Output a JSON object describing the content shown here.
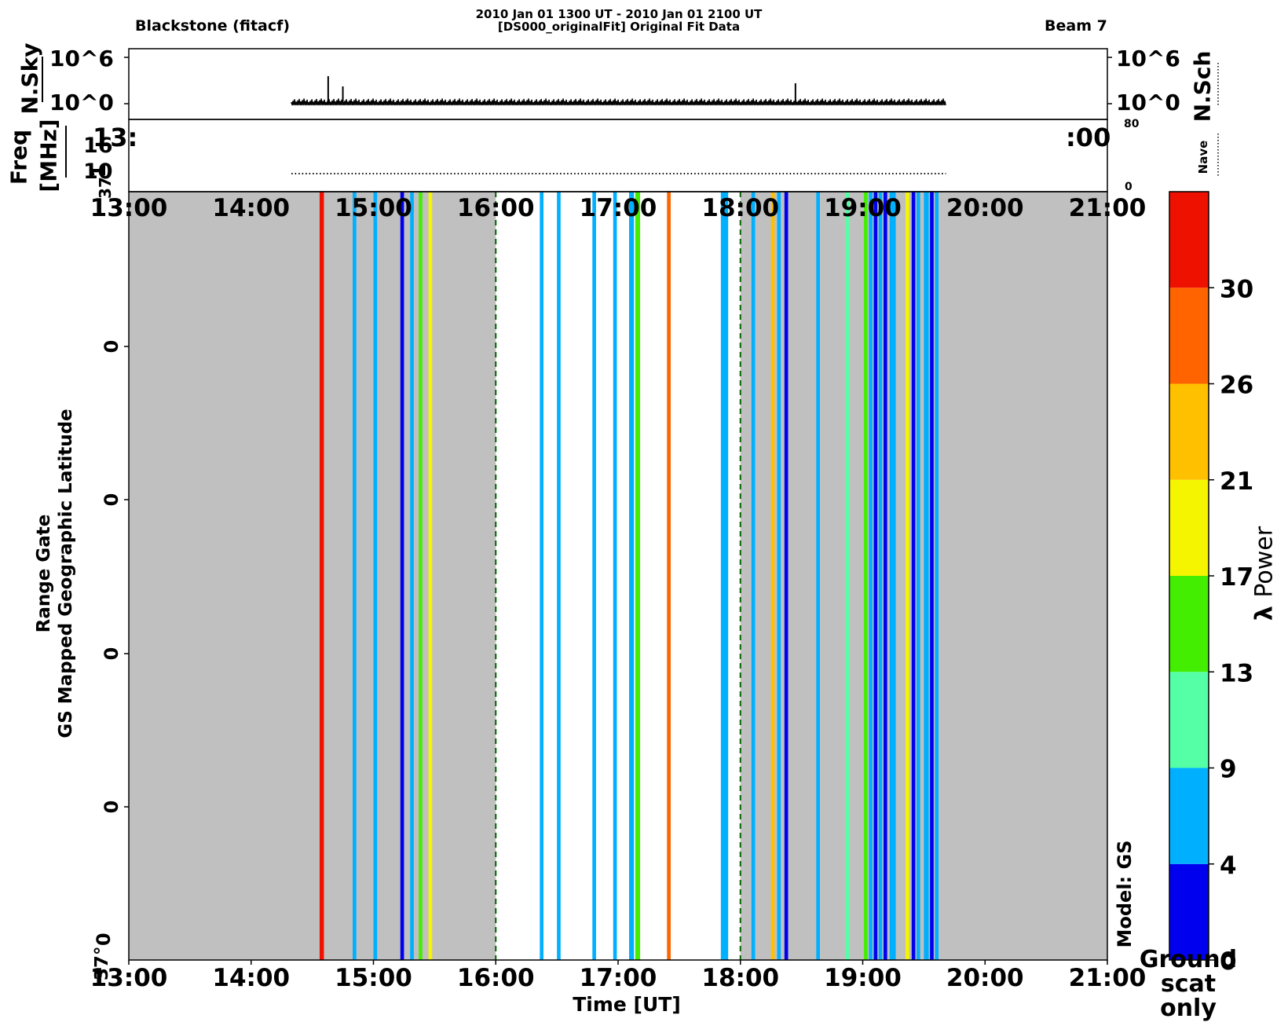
{
  "header": {
    "left": "Blackstone  (fitacf)",
    "center_line1": "2010 Jan 01 1300 UT - 2010 Jan 01 2100 UT",
    "center_line2": "[DS000_originalFit] Original Fit Data",
    "right": "Beam 7"
  },
  "top_panel": {
    "left_label": "N.Sky",
    "right_label": "N.Sch",
    "left_ticks": [
      "10^6",
      "10^0"
    ],
    "right_ticks": [
      "10^6",
      "10^0"
    ],
    "spike_times": [
      14.63,
      14.75,
      18.45
    ]
  },
  "mid_panel": {
    "left_label_1": "Freq",
    "left_label_2": "[MHz]",
    "left_ticks": [
      "16",
      "10"
    ],
    "right_label": "Nave",
    "right_ticks": [
      "80",
      "0"
    ],
    "overlap_left": "13:",
    "overlap_right": ":00",
    "overlap_low_1": "1",
    "overlap_low_2": "37°"
  },
  "main_panel": {
    "ylabel_1": "Range Gate",
    "ylabel_2": "GS Mapped Geographic Latitude",
    "xlabel": "Time [UT]",
    "model_label": "Model: GS",
    "y_ticks": [
      "0",
      "0",
      "0",
      "0"
    ],
    "y_bottom_1": "0",
    "y_bottom_2": "37°",
    "x_ticks": [
      "13:00",
      "14:00",
      "15:00",
      "16:00",
      "17:00",
      "18:00",
      "19:00",
      "20:00",
      "21:00"
    ],
    "gray": "#c0c0c0",
    "dashed_line_color": "#006400"
  },
  "colorbar": {
    "label_symbol": "λ",
    "label_word": "Power",
    "ticks": [
      "30",
      "26",
      "21",
      "17",
      "13",
      "9",
      "4",
      "0"
    ],
    "ground_label_1": "Ground",
    "ground_label_2": "scat",
    "ground_label_3": "only"
  },
  "chart_data": {
    "type": "heatmap",
    "title": "2010 Jan 01 1300 UT - 2010 Jan 01 2100 UT",
    "subtitle": "[DS000_originalFit] Original Fit Data",
    "xlabel": "Time [UT]",
    "ylabel": "Range Gate / GS Mapped Geographic Latitude",
    "xlim_hours": [
      13,
      21
    ],
    "colorbar_label": "λ Power",
    "color_levels": [
      {
        "min": 0,
        "max": 4,
        "color": "#0000ee"
      },
      {
        "min": 4,
        "max": 9,
        "color": "#00b0ff"
      },
      {
        "min": 9,
        "max": 13,
        "color": "#55ffa5"
      },
      {
        "min": 13,
        "max": 17,
        "color": "#44ee00"
      },
      {
        "min": 17,
        "max": 21,
        "color": "#f5f500"
      },
      {
        "min": 21,
        "max": 26,
        "color": "#ffc000"
      },
      {
        "min": 26,
        "max": 30,
        "color": "#ff6400"
      },
      {
        "min": 30,
        "max": 34,
        "color": "#ee1100"
      }
    ],
    "background_regions": [
      {
        "start": 13.0,
        "end": 16.0,
        "fill": "gray"
      },
      {
        "start": 16.0,
        "end": 18.0,
        "fill": "white"
      },
      {
        "start": 18.0,
        "end": 19.6,
        "fill": "gray"
      },
      {
        "start": 19.6,
        "end": 21.0,
        "fill": "gray"
      }
    ],
    "dashed_lines": [
      16.0,
      18.0
    ],
    "stripes": [
      {
        "t": 14.56,
        "w": 0.035,
        "color": "#ee1100"
      },
      {
        "t": 14.83,
        "w": 0.03,
        "color": "#00b0ff"
      },
      {
        "t": 15.0,
        "w": 0.03,
        "color": "#00b0ff"
      },
      {
        "t": 15.22,
        "w": 0.03,
        "color": "#0000ee"
      },
      {
        "t": 15.3,
        "w": 0.03,
        "color": "#00b0ff"
      },
      {
        "t": 15.37,
        "w": 0.03,
        "color": "#44ee00"
      },
      {
        "t": 15.45,
        "w": 0.03,
        "color": "#f5f500"
      },
      {
        "t": 16.36,
        "w": 0.03,
        "color": "#00b0ff"
      },
      {
        "t": 16.5,
        "w": 0.03,
        "color": "#00b0ff"
      },
      {
        "t": 16.79,
        "w": 0.03,
        "color": "#00b0ff"
      },
      {
        "t": 16.96,
        "w": 0.03,
        "color": "#00b0ff"
      },
      {
        "t": 17.09,
        "w": 0.04,
        "color": "#00b0ff"
      },
      {
        "t": 17.14,
        "w": 0.04,
        "color": "#44ee00"
      },
      {
        "t": 17.4,
        "w": 0.03,
        "color": "#ff6400"
      },
      {
        "t": 17.84,
        "w": 0.06,
        "color": "#00b0ff"
      },
      {
        "t": 18.09,
        "w": 0.03,
        "color": "#00b0ff"
      },
      {
        "t": 18.25,
        "w": 0.03,
        "color": "#ffc000"
      },
      {
        "t": 18.3,
        "w": 0.03,
        "color": "#00b0ff"
      },
      {
        "t": 18.36,
        "w": 0.03,
        "color": "#0000ee"
      },
      {
        "t": 18.62,
        "w": 0.03,
        "color": "#00b0ff"
      },
      {
        "t": 18.86,
        "w": 0.03,
        "color": "#55ffa5"
      },
      {
        "t": 19.01,
        "w": 0.03,
        "color": "#44ee00"
      },
      {
        "t": 19.05,
        "w": 0.03,
        "color": "#00b0ff"
      },
      {
        "t": 19.09,
        "w": 0.03,
        "color": "#0000ee"
      },
      {
        "t": 19.13,
        "w": 0.03,
        "color": "#00b0ff"
      },
      {
        "t": 19.17,
        "w": 0.03,
        "color": "#0000ee"
      },
      {
        "t": 19.22,
        "w": 0.05,
        "color": "#00b0ff"
      },
      {
        "t": 19.35,
        "w": 0.03,
        "color": "#f5f500"
      },
      {
        "t": 19.4,
        "w": 0.03,
        "color": "#0000ee"
      },
      {
        "t": 19.44,
        "w": 0.03,
        "color": "#00b0ff"
      },
      {
        "t": 19.5,
        "w": 0.04,
        "color": "#00b0ff"
      },
      {
        "t": 19.55,
        "w": 0.03,
        "color": "#0000ee"
      },
      {
        "t": 19.59,
        "w": 0.03,
        "color": "#00b0ff"
      }
    ],
    "data_span_hours": [
      14.33,
      19.68
    ]
  }
}
